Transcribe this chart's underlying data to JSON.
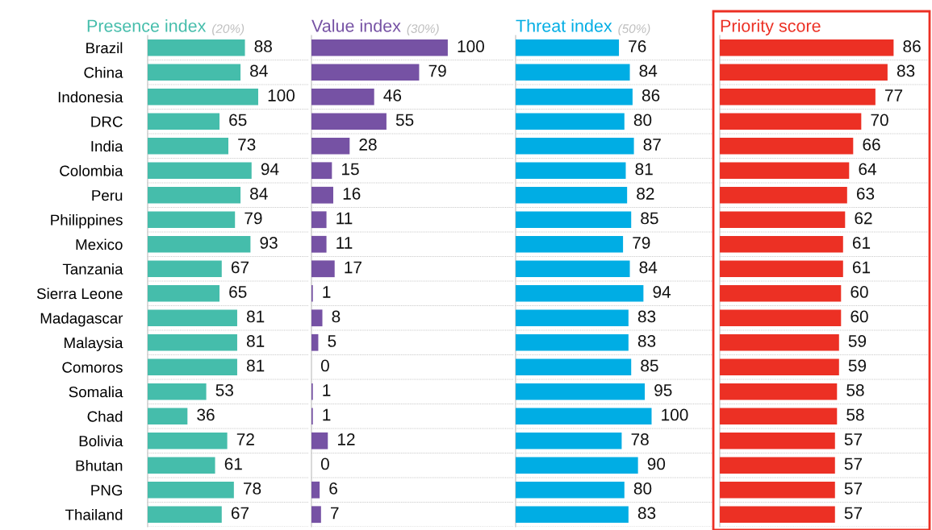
{
  "chart_data": [
    {
      "type": "bar",
      "orientation": "horizontal",
      "title": "Presence index",
      "subtitle": "(20%)",
      "categories": [
        "Brazil",
        "China",
        "Indonesia",
        "DRC",
        "India",
        "Colombia",
        "Peru",
        "Philippines",
        "Mexico",
        "Tanzania",
        "Sierra Leone",
        "Madagascar",
        "Malaysia",
        "Comoros",
        "Somalia",
        "Chad",
        "Bolivia",
        "Bhutan",
        "PNG",
        "Thailand"
      ],
      "xlim": [
        0,
        146
      ],
      "color": "#45bdab",
      "values": [
        88,
        84,
        100,
        65,
        73,
        94,
        84,
        79,
        93,
        67,
        65,
        81,
        81,
        81,
        53,
        36,
        72,
        61,
        78,
        67
      ],
      "data_labels": true,
      "grid": "y",
      "tick_labels": "y"
    },
    {
      "type": "bar",
      "orientation": "horizontal",
      "title": "Value index",
      "subtitle": "(30%)",
      "categories": [
        null,
        null,
        null,
        null,
        null,
        null,
        null,
        null,
        null,
        null,
        null,
        null,
        null,
        null,
        null,
        null,
        null,
        null,
        null,
        null
      ],
      "xlim": [
        0,
        148
      ],
      "color": "#7652a4",
      "values": [
        100,
        79,
        46,
        55,
        28,
        15,
        16,
        11,
        11,
        17,
        1,
        8,
        5,
        0,
        1,
        1,
        12,
        0,
        6,
        7
      ],
      "data_labels": true,
      "grid": "y",
      "tick_labels": false
    },
    {
      "type": "bar",
      "orientation": "horizontal",
      "title": "Threat index",
      "subtitle": "(50%)",
      "categories": [
        null,
        null,
        null,
        null,
        null,
        null,
        null,
        null,
        null,
        null,
        null,
        null,
        null,
        null,
        null,
        null,
        null,
        null,
        null,
        null
      ],
      "xlim": [
        0,
        146
      ],
      "color": "#00ade4",
      "values": [
        76,
        84,
        86,
        80,
        87,
        81,
        82,
        85,
        79,
        84,
        94,
        83,
        83,
        85,
        95,
        100,
        78,
        90,
        80,
        83
      ],
      "data_labels": true,
      "grid": "y",
      "tick_labels": false
    },
    {
      "type": "bar",
      "orientation": "horizontal",
      "title": "Priority score",
      "categories": [
        null,
        null,
        null,
        null,
        null,
        null,
        null,
        null,
        null,
        null,
        null,
        null,
        null,
        null,
        null,
        null,
        null,
        null,
        null,
        null
      ],
      "xlim": [
        0,
        103
      ],
      "color": "#ec3024",
      "values": [
        86,
        83,
        77,
        70,
        66,
        64,
        63,
        62,
        61,
        61,
        60,
        60,
        59,
        59,
        58,
        58,
        57,
        57,
        57,
        57
      ],
      "data_labels": true,
      "grid": "y",
      "tick_labels": false
    }
  ]
}
